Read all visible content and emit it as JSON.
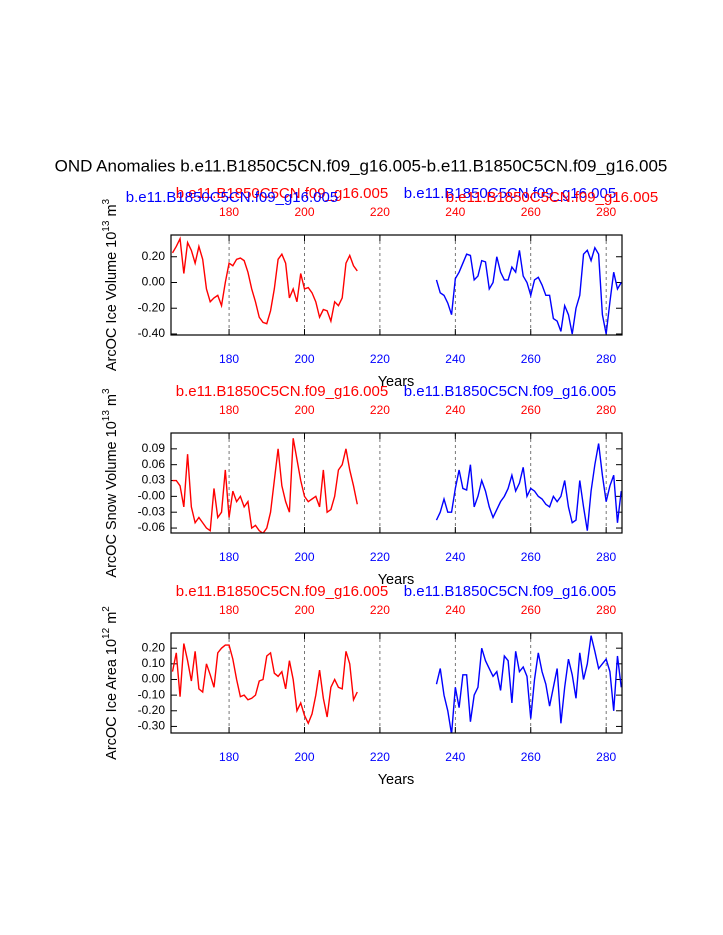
{
  "title": "OND Anomalies b.e11.B1850C5CN.f09_g16.005-b.e11.B1850C5CN.f09_g16.005",
  "chart_data": [
    {
      "type": "line",
      "xlim": [
        164.6,
        284.2
      ],
      "xticks": [
        180,
        200,
        220,
        240,
        260,
        280
      ],
      "grid": true,
      "ylim": [
        -0.408,
        0.369
      ],
      "yticks": [
        {
          "value": 0.2,
          "label": "0.20"
        },
        {
          "value": 0,
          "label": "0.00"
        },
        {
          "value": -0.2,
          "label": "-0.20"
        },
        {
          "value": -0.4,
          "label": "-0.40"
        }
      ],
      "x_label": "Years",
      "y_label": {
        "text": "ArcOC Ice Volume 10",
        "exp": "13",
        "unit": " m",
        "unit_exp": "3"
      },
      "series": [
        {
          "name": "b.e11.B1850C5CN.f09_g16.005",
          "color": "#ff0000",
          "x": [
            165,
            166,
            167,
            168,
            169,
            170,
            171,
            172,
            173,
            174,
            175,
            176,
            177,
            178,
            179,
            180,
            181,
            182,
            183,
            184,
            185,
            186,
            187,
            188,
            189,
            190,
            191,
            192,
            193,
            194,
            195,
            196,
            197,
            198,
            199,
            200,
            201,
            202,
            203,
            204,
            205,
            206,
            207,
            208,
            209,
            210,
            211,
            212,
            213,
            214
          ],
          "values": [
            0.23,
            0.28,
            0.34,
            0.07,
            0.31,
            0.25,
            0.15,
            0.28,
            0.18,
            -0.05,
            -0.15,
            -0.12,
            -0.1,
            -0.18,
            0.0,
            0.15,
            0.13,
            0.18,
            0.19,
            0.17,
            0.08,
            -0.05,
            -0.15,
            -0.27,
            -0.31,
            -0.32,
            -0.22,
            -0.05,
            0.18,
            0.22,
            0.15,
            -0.12,
            -0.05,
            -0.15,
            0.07,
            -0.05,
            -0.04,
            -0.08,
            -0.15,
            -0.27,
            -0.21,
            -0.22,
            -0.3,
            -0.15,
            -0.18,
            -0.12,
            0.15,
            0.21,
            0.13,
            0.09
          ]
        },
        {
          "name": "b.e11.B1850C5CN.f09_g16.005",
          "color": "#0000ff",
          "x": [
            235,
            236,
            237,
            238,
            239,
            240,
            241,
            242,
            243,
            244,
            245,
            246,
            247,
            248,
            249,
            250,
            251,
            252,
            253,
            254,
            255,
            256,
            257,
            258,
            259,
            260,
            261,
            262,
            263,
            264,
            265,
            266,
            267,
            268,
            269,
            270,
            271,
            272,
            273,
            274,
            275,
            276,
            277,
            278,
            279,
            280,
            281,
            282,
            283,
            284
          ],
          "values": [
            0.02,
            -0.08,
            -0.1,
            -0.16,
            -0.25,
            0.03,
            0.08,
            0.15,
            0.22,
            0.21,
            0.02,
            0.05,
            0.17,
            0.16,
            -0.05,
            0.0,
            0.2,
            0.08,
            0.02,
            0.02,
            0.12,
            0.08,
            0.25,
            0.05,
            0.0,
            -0.1,
            0.02,
            0.04,
            -0.02,
            -0.1,
            -0.1,
            -0.28,
            -0.3,
            -0.38,
            -0.18,
            -0.25,
            -0.4,
            -0.2,
            -0.1,
            0.22,
            0.25,
            0.17,
            0.27,
            0.22,
            -0.25,
            -0.4,
            -0.15,
            0.08,
            -0.05,
            0.0
          ]
        }
      ]
    },
    {
      "type": "line",
      "xlim": [
        164.6,
        284.2
      ],
      "xticks": [
        180,
        200,
        220,
        240,
        260,
        280
      ],
      "grid": true,
      "ylim": [
        -0.0694,
        0.12
      ],
      "yticks": [
        0.09,
        0.06,
        0.03,
        {
          "value": 0,
          "label": "-0.00"
        },
        -0.03,
        -0.06
      ],
      "x_label": "Years",
      "y_label": {
        "text": "ArcOC Snow Volume 10",
        "exp": "13",
        "unit": " m",
        "unit_exp": "3"
      },
      "series": [
        {
          "name": "b.e11.B1850C5CN.f09_g16.005",
          "color": "#ff0000",
          "x": [
            165,
            166,
            167,
            168,
            169,
            170,
            171,
            172,
            173,
            174,
            175,
            176,
            177,
            178,
            179,
            180,
            181,
            182,
            183,
            184,
            185,
            186,
            187,
            188,
            189,
            190,
            191,
            192,
            193,
            194,
            195,
            196,
            197,
            198,
            199,
            200,
            201,
            202,
            203,
            204,
            205,
            206,
            207,
            208,
            209,
            210,
            211,
            212,
            213,
            214
          ],
          "values": [
            0.03,
            0.03,
            0.02,
            -0.02,
            0.08,
            -0.02,
            -0.05,
            -0.04,
            -0.05,
            -0.06,
            -0.065,
            0.015,
            -0.04,
            -0.03,
            0.05,
            -0.04,
            0.01,
            -0.01,
            0.0,
            -0.02,
            -0.01,
            -0.06,
            -0.055,
            -0.065,
            -0.07,
            -0.06,
            -0.03,
            0.03,
            0.09,
            0.02,
            -0.01,
            -0.03,
            0.11,
            0.07,
            0.03,
            0.0,
            -0.01,
            -0.005,
            0.0,
            -0.02,
            0.05,
            -0.03,
            -0.025,
            0.0,
            0.05,
            0.06,
            0.09,
            0.05,
            0.02,
            -0.015
          ]
        },
        {
          "name": "b.e11.B1850C5CN.f09_g16.005",
          "color": "#0000ff",
          "x": [
            235,
            236,
            237,
            238,
            239,
            240,
            241,
            242,
            243,
            244,
            245,
            246,
            247,
            248,
            249,
            250,
            251,
            252,
            253,
            254,
            255,
            256,
            257,
            258,
            259,
            260,
            261,
            262,
            263,
            264,
            265,
            266,
            267,
            268,
            269,
            270,
            271,
            272,
            273,
            274,
            275,
            276,
            277,
            278,
            279,
            280,
            281,
            282,
            283,
            284
          ],
          "values": [
            -0.045,
            -0.03,
            -0.005,
            -0.03,
            -0.03,
            0.015,
            0.05,
            0.015,
            0.012,
            0.06,
            -0.02,
            0.0,
            0.03,
            0.01,
            -0.02,
            -0.04,
            -0.025,
            -0.01,
            0.0,
            0.015,
            0.04,
            0.01,
            0.025,
            0.055,
            0.0,
            0.015,
            0.01,
            0.0,
            -0.005,
            -0.015,
            -0.02,
            0.0,
            -0.01,
            0.0,
            0.03,
            -0.02,
            -0.05,
            -0.045,
            0.03,
            -0.02,
            -0.065,
            0.01,
            0.06,
            0.1,
            0.04,
            -0.01,
            0.02,
            0.04,
            -0.05,
            0.01
          ]
        }
      ]
    },
    {
      "type": "line",
      "xlim": [
        164.6,
        284.2
      ],
      "xticks": [
        180,
        200,
        220,
        240,
        260,
        280
      ],
      "grid": true,
      "ylim": [
        -0.342,
        0.297
      ],
      "yticks": [
        {
          "value": 0.2,
          "label": "0.20"
        },
        {
          "value": 0.1,
          "label": "0.10"
        },
        {
          "value": 0,
          "label": "0.00"
        },
        {
          "value": -0.1,
          "label": "-0.10"
        },
        {
          "value": -0.2,
          "label": "-0.20"
        },
        {
          "value": -0.3,
          "label": "-0.30"
        }
      ],
      "x_label": "Years",
      "y_label": {
        "text": "ArcOC Ice Area 10",
        "exp": "12",
        "unit": " m",
        "unit_exp": "2"
      },
      "series": [
        {
          "name": "b.e11.B1850C5CN.f09_g16.005",
          "color": "#ff0000",
          "x": [
            165,
            166,
            167,
            168,
            169,
            170,
            171,
            172,
            173,
            174,
            175,
            176,
            177,
            178,
            179,
            180,
            181,
            182,
            183,
            184,
            185,
            186,
            187,
            188,
            189,
            190,
            191,
            192,
            193,
            194,
            195,
            196,
            197,
            198,
            199,
            200,
            201,
            202,
            203,
            204,
            205,
            206,
            207,
            208,
            209,
            210,
            211,
            212,
            213,
            214
          ],
          "values": [
            0.05,
            0.17,
            -0.11,
            0.23,
            0.12,
            -0.01,
            0.18,
            -0.06,
            -0.08,
            0.1,
            0.03,
            -0.05,
            0.17,
            0.2,
            0.22,
            0.22,
            0.13,
            0.0,
            -0.11,
            -0.1,
            -0.13,
            -0.12,
            -0.1,
            -0.01,
            0.0,
            0.15,
            0.17,
            0.04,
            0.02,
            0.05,
            -0.06,
            0.12,
            0.0,
            -0.2,
            -0.15,
            -0.23,
            -0.28,
            -0.22,
            -0.1,
            0.06,
            -0.12,
            -0.24,
            -0.05,
            0.0,
            -0.05,
            -0.06,
            0.18,
            0.1,
            -0.13,
            -0.08
          ]
        },
        {
          "name": "b.e11.B1850C5CN.f09_g16.005",
          "color": "#0000ff",
          "x": [
            235,
            236,
            237,
            238,
            239,
            240,
            241,
            242,
            243,
            244,
            245,
            246,
            247,
            248,
            249,
            250,
            251,
            252,
            253,
            254,
            255,
            256,
            257,
            258,
            259,
            260,
            261,
            262,
            263,
            264,
            265,
            266,
            267,
            268,
            269,
            270,
            271,
            272,
            273,
            274,
            275,
            276,
            277,
            278,
            279,
            280,
            281,
            282,
            283,
            284
          ],
          "values": [
            -0.03,
            0.07,
            -0.1,
            -0.2,
            -0.35,
            -0.05,
            -0.18,
            0.03,
            0.03,
            -0.27,
            -0.1,
            -0.05,
            0.2,
            0.12,
            0.07,
            0.02,
            0.05,
            -0.07,
            0.15,
            0.12,
            -0.15,
            0.18,
            0.05,
            0.08,
            0.02,
            -0.25,
            0.0,
            0.17,
            0.05,
            -0.03,
            -0.17,
            -0.05,
            0.07,
            -0.28,
            -0.05,
            0.13,
            0.03,
            -0.12,
            0.17,
            0.0,
            0.1,
            0.28,
            0.18,
            0.07,
            0.1,
            0.13,
            0.05,
            -0.2,
            0.15,
            -0.05
          ]
        }
      ]
    }
  ]
}
